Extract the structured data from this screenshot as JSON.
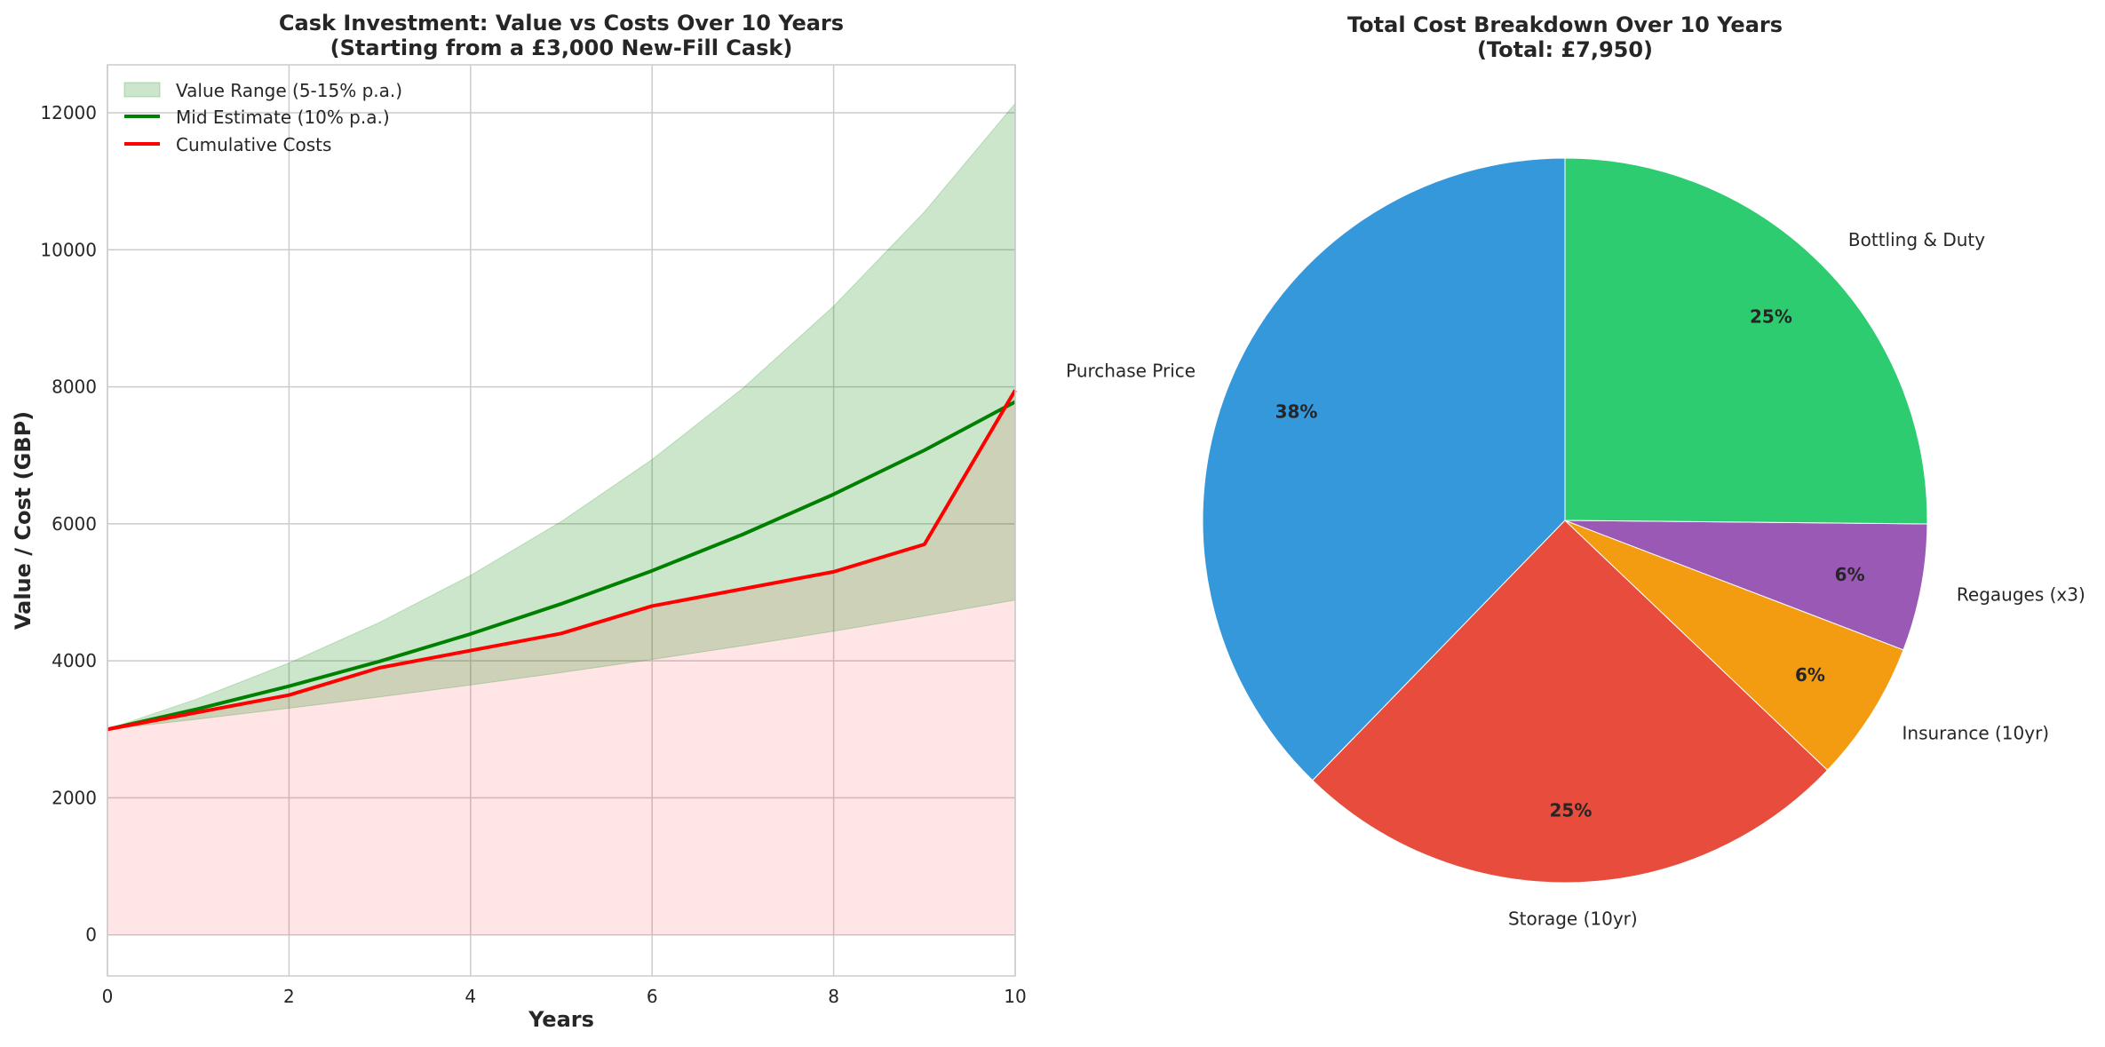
{
  "chart_data": [
    {
      "type": "line",
      "title": "Cask Investment: Value vs Costs Over 10 Years",
      "subtitle": "(Starting from a £3,000 New-Fill Cask)",
      "xlabel": "Years",
      "ylabel": "Value / Cost (GBP)",
      "xlim": [
        0,
        10
      ],
      "ylim": [
        -600,
        12700
      ],
      "xticks": [
        0,
        2,
        4,
        6,
        8,
        10
      ],
      "yticks": [
        0,
        2000,
        4000,
        6000,
        8000,
        10000,
        12000
      ],
      "grid": true,
      "legend_position": "top-left",
      "x": [
        0,
        1,
        2,
        3,
        4,
        5,
        6,
        7,
        8,
        9,
        10
      ],
      "range": {
        "name": "Value Range (5-15% p.a.)",
        "color": "#008000",
        "low": [
          3000,
          3150,
          3308,
          3473,
          3647,
          3829,
          4020,
          4221,
          4432,
          4654,
          4887
        ],
        "high": [
          3000,
          3450,
          3968,
          4563,
          5247,
          6034,
          6939,
          7980,
          9177,
          10554,
          12137
        ]
      },
      "series": [
        {
          "name": "Mid Estimate (10% p.a.)",
          "color": "#008000",
          "values": [
            3000,
            3300,
            3630,
            3993,
            4392,
            4832,
            5315,
            5846,
            6431,
            7074,
            7781
          ]
        },
        {
          "name": "Cumulative Costs",
          "color": "#ff0000",
          "values": [
            3000,
            3250,
            3500,
            3900,
            4150,
            4400,
            4800,
            5050,
            5300,
            5700,
            7950
          ]
        }
      ]
    },
    {
      "type": "pie",
      "title": "Total Cost Breakdown Over 10 Years",
      "subtitle": "(Total: £7,950)",
      "start_angle": 90,
      "direction": "counterclockwise",
      "slices": [
        {
          "label": "Purchase Price",
          "value": 3000,
          "pct": "38%",
          "color": "#3498db"
        },
        {
          "label": "Storage (10yr)",
          "value": 2000,
          "pct": "25%",
          "color": "#e74c3c"
        },
        {
          "label": "Insurance (10yr)",
          "value": 500,
          "pct": "6%",
          "color": "#f39c12"
        },
        {
          "label": "Regauges (x3)",
          "value": 450,
          "pct": "6%",
          "color": "#9b59b6"
        },
        {
          "label": "Bottling & Duty",
          "value": 2000,
          "pct": "25%",
          "color": "#2ecc71"
        }
      ]
    }
  ]
}
